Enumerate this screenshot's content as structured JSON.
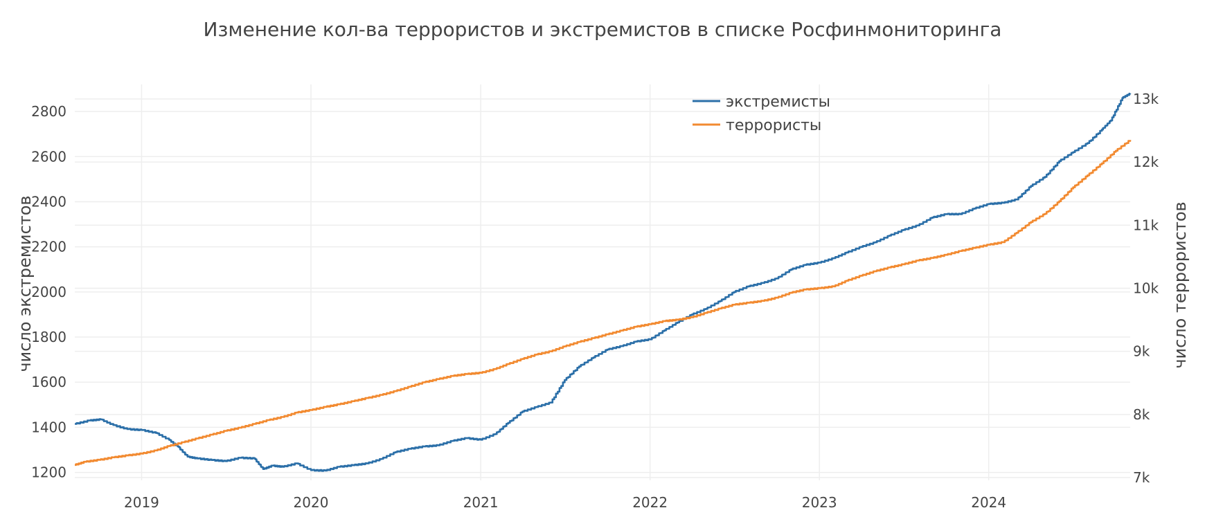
{
  "chart_data": {
    "type": "line",
    "title": "Изменение кол-ва террористов и экстремистов в списке Росфинмониторинга",
    "xlabel": "",
    "x_ticks": [
      "2019",
      "2020",
      "2021",
      "2022",
      "2023",
      "2024"
    ],
    "x_range": [
      "2018-08-10",
      "2024-11-01"
    ],
    "y_left": {
      "label": "число экстремистов",
      "range": [
        1165,
        2920
      ],
      "ticks": [
        1200,
        1400,
        1600,
        1800,
        2000,
        2200,
        2400,
        2600,
        2800
      ]
    },
    "y_right": {
      "label": "число террористов",
      "range": [
        7000,
        13000
      ],
      "ticks": [
        7000,
        8000,
        9000,
        10000,
        11000,
        12000,
        13000
      ],
      "tick_labels": [
        "7k",
        "8k",
        "9k",
        "10k",
        "11k",
        "12k",
        "13k"
      ]
    },
    "grid": true,
    "legend_position": "top-center",
    "series": [
      {
        "name": "экстремисты",
        "axis": "left",
        "color": "#2b6fa8",
        "x": [
          "2018-08-10",
          "2018-09-10",
          "2018-10-05",
          "2018-11-01",
          "2018-12-01",
          "2019-01-01",
          "2019-02-01",
          "2019-03-01",
          "2019-03-20",
          "2019-04-10",
          "2019-05-01",
          "2019-06-01",
          "2019-07-01",
          "2019-08-01",
          "2019-09-01",
          "2019-09-20",
          "2019-10-10",
          "2019-11-01",
          "2019-12-01",
          "2020-01-01",
          "2020-02-01",
          "2020-03-01",
          "2020-04-01",
          "2020-05-01",
          "2020-06-01",
          "2020-07-01",
          "2020-08-01",
          "2020-09-01",
          "2020-10-01",
          "2020-11-01",
          "2020-12-01",
          "2021-01-01",
          "2021-02-01",
          "2021-03-01",
          "2021-04-01",
          "2021-05-01",
          "2021-06-01",
          "2021-07-01",
          "2021-08-01",
          "2021-09-01",
          "2021-10-01",
          "2021-11-01",
          "2021-12-01",
          "2022-01-01",
          "2022-02-01",
          "2022-03-01",
          "2022-04-01",
          "2022-05-01",
          "2022-06-01",
          "2022-07-01",
          "2022-08-01",
          "2022-09-01",
          "2022-10-01",
          "2022-11-01",
          "2022-12-01",
          "2023-01-01",
          "2023-02-01",
          "2023-03-01",
          "2023-04-01",
          "2023-05-01",
          "2023-06-01",
          "2023-07-01",
          "2023-08-01",
          "2023-09-01",
          "2023-10-01",
          "2023-11-01",
          "2023-12-01",
          "2024-01-01",
          "2024-02-01",
          "2024-03-01",
          "2024-04-01",
          "2024-05-01",
          "2024-06-01",
          "2024-07-01",
          "2024-08-01",
          "2024-09-01",
          "2024-09-20",
          "2024-10-15",
          "2024-11-01"
        ],
        "y": [
          1415,
          1430,
          1435,
          1410,
          1392,
          1388,
          1375,
          1345,
          1315,
          1270,
          1262,
          1255,
          1250,
          1265,
          1262,
          1215,
          1230,
          1225,
          1240,
          1210,
          1208,
          1225,
          1232,
          1240,
          1260,
          1290,
          1305,
          1315,
          1320,
          1340,
          1352,
          1345,
          1370,
          1420,
          1470,
          1490,
          1510,
          1610,
          1670,
          1710,
          1745,
          1760,
          1780,
          1790,
          1830,
          1865,
          1900,
          1925,
          1960,
          2000,
          2025,
          2040,
          2060,
          2100,
          2120,
          2130,
          2150,
          2175,
          2200,
          2220,
          2250,
          2275,
          2295,
          2330,
          2345,
          2345,
          2370,
          2390,
          2395,
          2410,
          2470,
          2510,
          2580,
          2620,
          2660,
          2720,
          2760,
          2860,
          2880
        ]
      },
      {
        "name": "террористы",
        "axis": "right",
        "color": "#f28a30",
        "x": [
          "2018-08-10",
          "2018-09-01",
          "2018-10-01",
          "2018-11-01",
          "2018-12-01",
          "2019-01-01",
          "2019-02-01",
          "2019-03-01",
          "2019-04-01",
          "2019-05-01",
          "2019-06-01",
          "2019-07-01",
          "2019-08-01",
          "2019-09-01",
          "2019-10-01",
          "2019-11-01",
          "2019-12-01",
          "2020-01-01",
          "2020-02-01",
          "2020-03-01",
          "2020-04-01",
          "2020-05-01",
          "2020-06-01",
          "2020-07-01",
          "2020-08-01",
          "2020-09-01",
          "2020-10-01",
          "2020-11-01",
          "2020-12-01",
          "2021-01-01",
          "2021-02-01",
          "2021-03-01",
          "2021-04-01",
          "2021-05-01",
          "2021-06-01",
          "2021-07-01",
          "2021-08-01",
          "2021-09-01",
          "2021-10-01",
          "2021-11-01",
          "2021-12-01",
          "2022-01-01",
          "2022-02-01",
          "2022-03-01",
          "2022-04-01",
          "2022-05-01",
          "2022-06-01",
          "2022-07-01",
          "2022-08-01",
          "2022-09-01",
          "2022-10-01",
          "2022-11-01",
          "2022-12-01",
          "2023-01-01",
          "2023-02-01",
          "2023-03-01",
          "2023-04-01",
          "2023-05-01",
          "2023-06-01",
          "2023-07-01",
          "2023-08-01",
          "2023-09-01",
          "2023-10-01",
          "2023-11-01",
          "2023-12-01",
          "2024-01-01",
          "2024-02-01",
          "2024-03-01",
          "2024-04-01",
          "2024-05-01",
          "2024-06-01",
          "2024-07-01",
          "2024-08-01",
          "2024-09-01",
          "2024-10-01",
          "2024-11-01"
        ],
        "y": [
          7200,
          7250,
          7280,
          7320,
          7350,
          7380,
          7430,
          7500,
          7560,
          7620,
          7680,
          7740,
          7790,
          7850,
          7910,
          7960,
          8030,
          8070,
          8120,
          8160,
          8210,
          8260,
          8310,
          8370,
          8440,
          8510,
          8560,
          8610,
          8640,
          8660,
          8720,
          8800,
          8880,
          8950,
          9000,
          9080,
          9150,
          9210,
          9270,
          9330,
          9390,
          9430,
          9480,
          9500,
          9540,
          9610,
          9680,
          9740,
          9770,
          9800,
          9850,
          9930,
          9980,
          10000,
          10030,
          10120,
          10200,
          10270,
          10330,
          10380,
          10440,
          10480,
          10530,
          10590,
          10640,
          10690,
          10730,
          10880,
          11050,
          11180,
          11380,
          11600,
          11790,
          11980,
          12180,
          12350
        ]
      }
    ]
  }
}
